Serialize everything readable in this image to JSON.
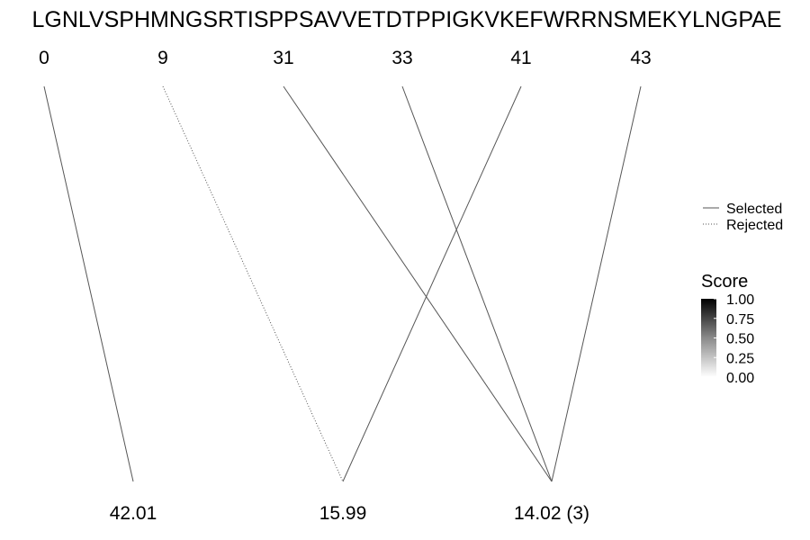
{
  "chart_data": {
    "type": "diagram",
    "sequence": "LGNLVSPHMNGSRTISPPSAVVETDTPPIGKVKEFWRRNSMEKYLNGPAE",
    "top_positions": [
      "0",
      "9",
      "31",
      "33",
      "41",
      "43"
    ],
    "bottom_nodes": [
      "42.01",
      "15.99",
      "14.02 (3)"
    ],
    "links": [
      {
        "from": 0,
        "to": 0,
        "style": "Selected",
        "score": 0.55
      },
      {
        "from": 1,
        "to": 1,
        "style": "Rejected",
        "score": 0.55
      },
      {
        "from": 2,
        "to": 2,
        "style": "Selected",
        "score": 0.55
      },
      {
        "from": 3,
        "to": 2,
        "style": "Selected",
        "score": 0.55
      },
      {
        "from": 4,
        "to": 1,
        "style": "Selected",
        "score": 0.55
      },
      {
        "from": 5,
        "to": 2,
        "style": "Selected",
        "score": 0.55
      }
    ],
    "legend_linetype": {
      "entries": [
        "Selected",
        "Rejected"
      ]
    },
    "legend_score": {
      "title": "Score",
      "range": [
        0,
        1
      ],
      "ticks": [
        "1.00",
        "0.75",
        "0.50",
        "0.25",
        "0.00"
      ]
    },
    "legend_position": "right"
  }
}
